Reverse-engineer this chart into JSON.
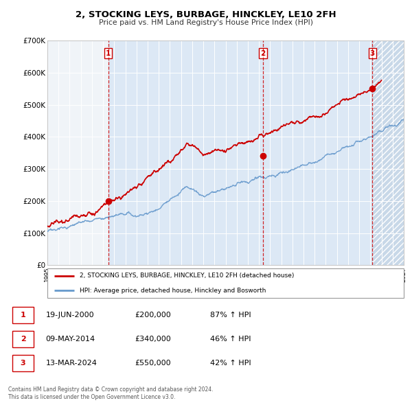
{
  "title": "2, STOCKING LEYS, BURBAGE, HINCKLEY, LE10 2FH",
  "subtitle": "Price paid vs. HM Land Registry's House Price Index (HPI)",
  "xlim": [
    1995,
    2027
  ],
  "ylim": [
    0,
    700000
  ],
  "yticks": [
    0,
    100000,
    200000,
    300000,
    400000,
    500000,
    600000,
    700000
  ],
  "ytick_labels": [
    "£0",
    "£100K",
    "£200K",
    "£300K",
    "£400K",
    "£500K",
    "£600K",
    "£700K"
  ],
  "sale_dates": [
    2000.46,
    2014.35,
    2024.19
  ],
  "sale_prices": [
    200000,
    340000,
    550000
  ],
  "sale_labels": [
    "1",
    "2",
    "3"
  ],
  "vline_color": "#cc0000",
  "sale_dot_color": "#cc0000",
  "hpi_line_color": "#6699cc",
  "price_line_color": "#cc0000",
  "bg_light_blue": "#dce8f5",
  "bg_hatch_color": "#c8d8e8",
  "legend_label_price": "2, STOCKING LEYS, BURBAGE, HINCKLEY, LE10 2FH (detached house)",
  "legend_label_hpi": "HPI: Average price, detached house, Hinckley and Bosworth",
  "table_rows": [
    [
      "1",
      "19-JUN-2000",
      "£200,000",
      "87% ↑ HPI"
    ],
    [
      "2",
      "09-MAY-2014",
      "£340,000",
      "46% ↑ HPI"
    ],
    [
      "3",
      "13-MAR-2024",
      "£550,000",
      "42% ↑ HPI"
    ]
  ],
  "footnote": "Contains HM Land Registry data © Crown copyright and database right 2024.\nThis data is licensed under the Open Government Licence v3.0."
}
